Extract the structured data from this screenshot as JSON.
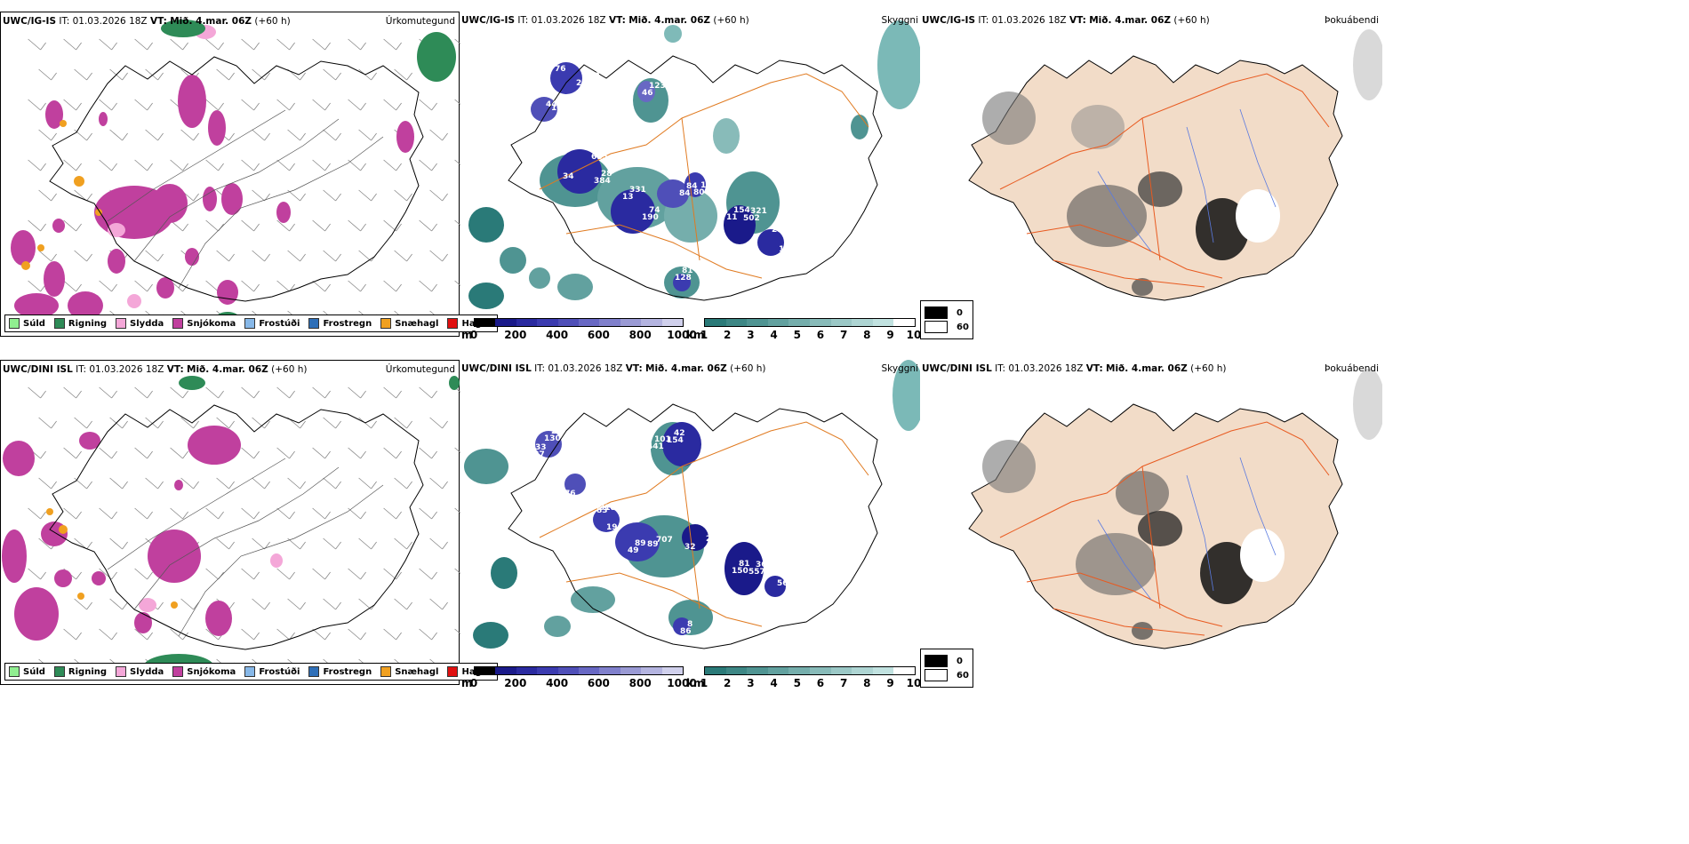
{
  "rows": [
    {
      "model": "UWC/IG-IS",
      "it_label": "IT:",
      "it_value": "01.03.2026 18Z",
      "vt_label": "VT:",
      "vt_value": "Mið. 4.mar. 06Z",
      "lead": "(+60 h)"
    },
    {
      "model": "UWC/DINI ISL",
      "it_label": "IT:",
      "it_value": "01.03.2026 18Z",
      "vt_label": "VT:",
      "vt_value": "Mið. 4.mar. 06Z",
      "lead": "(+60 h)"
    }
  ],
  "panels": {
    "precip_type": "Úrkomutegund",
    "ceiling": "Skyggni",
    "fog": "Þokuábendi"
  },
  "precip_legend": [
    {
      "label": "Súld",
      "color": "#90ee90"
    },
    {
      "label": "Rigning",
      "color": "#2e8b57"
    },
    {
      "label": "Slydda",
      "color": "#f4a7d8"
    },
    {
      "label": "Snjókoma",
      "color": "#c0409e"
    },
    {
      "label": "Frostúði",
      "color": "#87b8e8"
    },
    {
      "label": "Frostregn",
      "color": "#2e6fb8"
    },
    {
      "label": "Snæhagl",
      "color": "#f0a020"
    },
    {
      "label": "Haglél",
      "color": "#e01010"
    }
  ],
  "ceiling_scale": {
    "unit": "m",
    "ticks": [
      "0",
      "200",
      "400",
      "600",
      "800",
      "1000"
    ],
    "colors": [
      "#000000",
      "#1a1a8a",
      "#2a2aa0",
      "#3b3bb0",
      "#4f4fb8",
      "#6868c4",
      "#8080cc",
      "#9a9ad4",
      "#b4b4e0",
      "#d0d0ec"
    ]
  },
  "visibility_scale": {
    "unit": "km",
    "ticks": [
      "1",
      "2",
      "3",
      "4",
      "5",
      "6",
      "7",
      "8",
      "9",
      "10"
    ],
    "colors": [
      "#2a7a78",
      "#3d8785",
      "#4f9492",
      "#62a19f",
      "#75aeac",
      "#88bbb9",
      "#9bc8c6",
      "#aed5d3",
      "#c1e2e0",
      "#ffffff"
    ]
  },
  "fog_key": {
    "values": [
      "0",
      "60"
    ],
    "colors": [
      "#000000",
      "#ffffff"
    ]
  },
  "ceiling_labels_row1": [
    "76",
    "28",
    "34",
    "74",
    "84",
    "321",
    "120",
    "12",
    "123",
    "81",
    "44",
    "28",
    "331",
    "154",
    "153",
    "49",
    "122",
    "11",
    "685",
    "190",
    "84",
    "502",
    "231",
    "80",
    "46",
    "128",
    "14",
    "384",
    "13",
    "11",
    "19",
    "17",
    "29",
    "103"
  ],
  "ceiling_labels_row2": [
    "72",
    "33",
    "37",
    "13",
    "707",
    "360",
    "129",
    "281",
    "101",
    "8",
    "29",
    "19",
    "89",
    "81",
    "42",
    "76",
    "52",
    "137",
    "83",
    "89",
    "32",
    "557",
    "56",
    "207",
    "441",
    "86",
    "130",
    "318",
    "49",
    "150",
    "154",
    "99"
  ],
  "colors": {
    "land_fog": "#f2dcc8",
    "roads": "#e85a20",
    "rivers": "#5a7ae0",
    "coast": "#000000",
    "ceiling_roads": "#e07a20"
  }
}
